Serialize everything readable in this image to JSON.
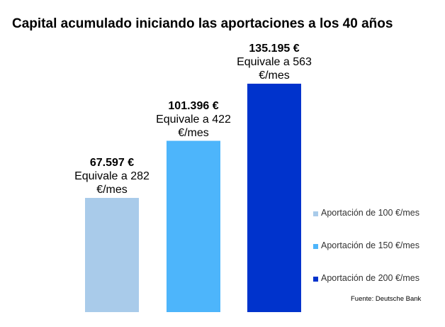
{
  "title": "Capital acumulado iniciando las aportaciones a los 40 años",
  "source": "Fuente: Deutsche Bank",
  "chart_data": {
    "type": "bar",
    "title": "Capital acumulado iniciando las aportaciones a los 40 años",
    "categories": [
      "Aportación de 100 €/mes",
      "Aportación de 150 €/mes",
      "Aportación de 200 €/mes"
    ],
    "values": [
      67597,
      101396,
      135195
    ],
    "value_labels": [
      "67.597 €",
      "101.396 €",
      "135.195 €"
    ],
    "sub_labels": [
      "Equivale a 282 €/mes",
      "Equivale a 422 €/mes",
      "Equivale a 563 €/mes"
    ],
    "colors": [
      "#a9cbea",
      "#4db5fb",
      "#0033cc"
    ],
    "xlabel": "",
    "ylabel": "",
    "ylim": [
      0,
      135195
    ],
    "grid": false,
    "legend_position": "right"
  }
}
